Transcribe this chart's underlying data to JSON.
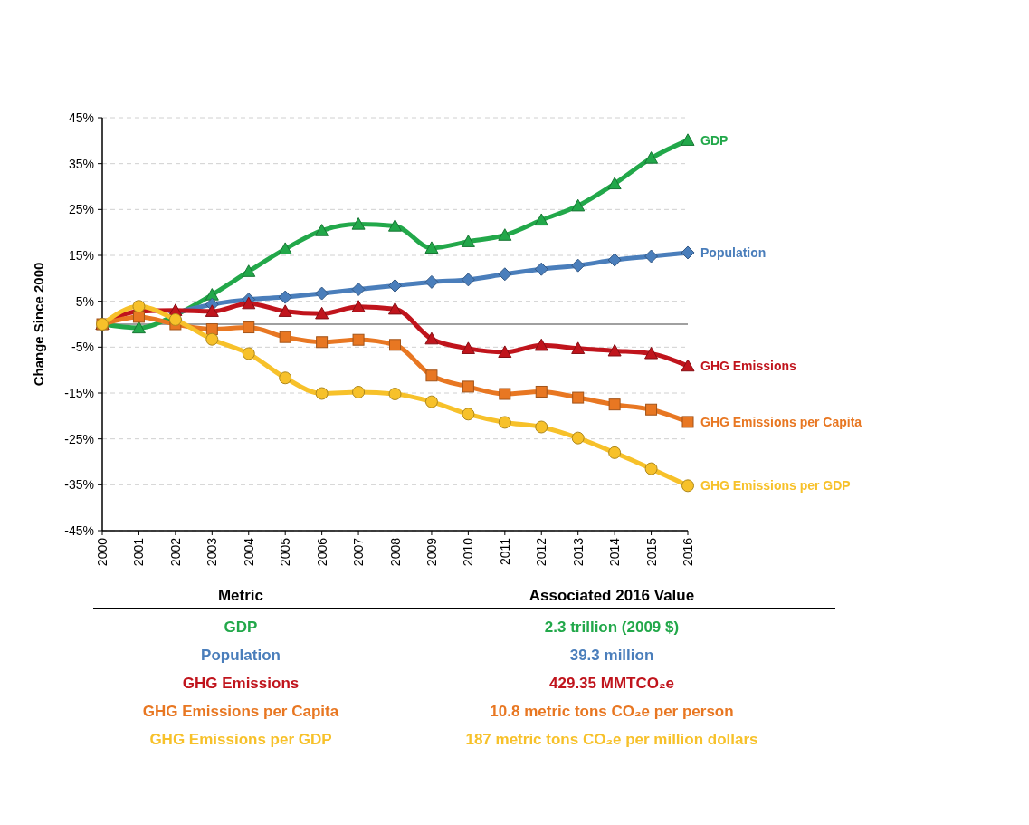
{
  "chart_data": {
    "type": "line",
    "ylabel": "Change Since 2000",
    "categories": [
      "2000",
      "2001",
      "2002",
      "2003",
      "2004",
      "2005",
      "2006",
      "2007",
      "2008",
      "2009",
      "2010",
      "2011",
      "2012",
      "2013",
      "2014",
      "2015",
      "2016"
    ],
    "series": [
      {
        "name": "GDP",
        "color": "#22a84a",
        "marker": "triangle",
        "values": [
          0,
          -0.8,
          2,
          6.4,
          11.5,
          16.4,
          20.4,
          21.8,
          21.4,
          16.6,
          18.0,
          19.4,
          22.7,
          25.8,
          30.6,
          36.2,
          40.1
        ]
      },
      {
        "name": "Population",
        "color": "#4a7ebb",
        "marker": "diamond",
        "values": [
          null,
          null,
          2.5,
          4.3,
          5.4,
          5.9,
          6.7,
          7.6,
          8.4,
          9.2,
          9.7,
          10.9,
          12.0,
          12.8,
          14.0,
          14.8,
          15.6
        ]
      },
      {
        "name": "GHG Emissions",
        "color": "#c0141c",
        "marker": "triangle",
        "values": [
          0,
          2.8,
          3.0,
          2.8,
          4.5,
          2.8,
          2.3,
          3.8,
          3.3,
          -3.2,
          -5.3,
          -6.1,
          -4.6,
          -5.3,
          -5.8,
          -6.4,
          -9.1
        ]
      },
      {
        "name": "GHG Emissions per Capita",
        "color": "#e87722",
        "marker": "square",
        "values": [
          0,
          1.6,
          0,
          -1.1,
          -0.7,
          -2.8,
          -3.9,
          -3.4,
          -4.5,
          -11.2,
          -13.6,
          -15.2,
          -14.7,
          -16.0,
          -17.5,
          -18.6,
          -21.3
        ]
      },
      {
        "name": "GHG Emissions per GDP",
        "color": "#f7c12a",
        "marker": "circle",
        "values": [
          0,
          3.9,
          1.0,
          -3.3,
          -6.4,
          -11.7,
          -15.1,
          -14.8,
          -15.2,
          -16.9,
          -19.6,
          -21.4,
          -22.4,
          -24.8,
          -28.0,
          -31.5,
          -35.2
        ]
      }
    ],
    "ylim": [
      -45,
      45
    ],
    "yticks": [
      {
        "value": -45,
        "label": "-45%"
      },
      {
        "value": -35,
        "label": "-35%"
      },
      {
        "value": -25,
        "label": "-25%"
      },
      {
        "value": -15,
        "label": "-15%"
      },
      {
        "value": -5,
        "label": "-5%"
      },
      {
        "value": 5,
        "label": "5%"
      },
      {
        "value": 15,
        "label": "15%"
      },
      {
        "value": 25,
        "label": "25%"
      },
      {
        "value": 35,
        "label": "35%"
      },
      {
        "value": 45,
        "label": "45%"
      }
    ],
    "grid": "y",
    "line_style": "solid",
    "ref_lines": [
      {
        "axis": "y",
        "value": 0,
        "label": null,
        "color": "#808080"
      }
    ],
    "annotations": [
      "Metric",
      "Associated 2016 Value",
      "GDP",
      "2.3 trillion (2009 $)",
      "Population",
      "39.3 million",
      "GHG Emissions",
      "429.35 MMTCO₂e",
      "GHG Emissions per Capita",
      "10.8 metric tons CO₂e per person",
      "GHG Emissions per GDP",
      "187 metric tons CO₂e per million dollars"
    ]
  }
}
